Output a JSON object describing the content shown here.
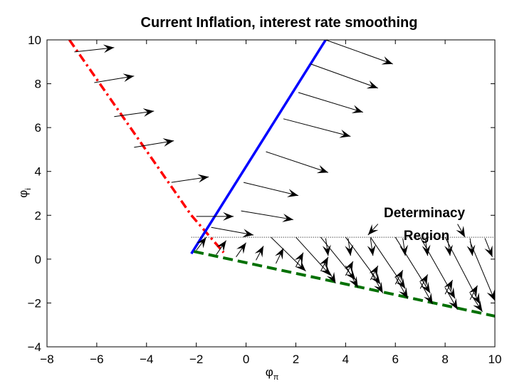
{
  "chart_data": {
    "type": "line",
    "title": "Current Inflation, interest rate smoothing",
    "xlabel": {
      "main": "φ",
      "sub": "π"
    },
    "ylabel": {
      "main": "φ",
      "sub": "i"
    },
    "xlim": [
      -8,
      10
    ],
    "ylim": [
      -4,
      10
    ],
    "xticks": [
      -8,
      -6,
      -4,
      -2,
      0,
      2,
      4,
      6,
      8,
      10
    ],
    "yticks": [
      -4,
      -2,
      0,
      2,
      4,
      6,
      8,
      10
    ],
    "grid": false,
    "series": [
      {
        "style": "dash-dot",
        "color": "#ff0000",
        "x": [
          -7.1,
          -2.2,
          -0.9
        ],
        "y": [
          10,
          2.0,
          0.3
        ]
      },
      {
        "style": "solid",
        "color": "#0000ff",
        "x": [
          -2.2,
          3.2
        ],
        "y": [
          0.25,
          10
        ]
      },
      {
        "style": "dashed",
        "color": "#007000",
        "x": [
          -2.1,
          10
        ],
        "y": [
          0.35,
          -2.6
        ]
      },
      {
        "style": "dotted",
        "color": "#000000",
        "x": [
          -2.2,
          10
        ],
        "y": [
          1,
          1
        ]
      }
    ],
    "arrows": [
      {
        "x1": -6.9,
        "y1": 9.45,
        "x2": -5.3,
        "y2": 9.65
      },
      {
        "x1": -6.1,
        "y1": 8.05,
        "x2": -4.5,
        "y2": 8.35
      },
      {
        "x1": -5.3,
        "y1": 6.5,
        "x2": -3.7,
        "y2": 6.75
      },
      {
        "x1": -4.5,
        "y1": 5.1,
        "x2": -2.9,
        "y2": 5.4
      },
      {
        "x1": -3.0,
        "y1": 3.5,
        "x2": -1.5,
        "y2": 3.75
      },
      {
        "x1": -2.0,
        "y1": 1.95,
        "x2": -0.5,
        "y2": 1.95
      },
      {
        "x1": 3.2,
        "y1": 10,
        "x2": 5.9,
        "y2": 8.9
      },
      {
        "x1": 2.6,
        "y1": 8.9,
        "x2": 5.3,
        "y2": 7.8
      },
      {
        "x1": 2.1,
        "y1": 7.6,
        "x2": 4.7,
        "y2": 6.7
      },
      {
        "x1": 1.5,
        "y1": 6.4,
        "x2": 4.2,
        "y2": 5.6
      },
      {
        "x1": 0.8,
        "y1": 4.9,
        "x2": 3.3,
        "y2": 3.95
      },
      {
        "x1": -0.1,
        "y1": 3.5,
        "x2": 2.1,
        "y2": 2.9
      },
      {
        "x1": -0.2,
        "y1": 2.2,
        "x2": 1.9,
        "y2": 1.8
      },
      {
        "x1": -1.4,
        "y1": 1.45,
        "x2": 0.3,
        "y2": 1.1
      },
      {
        "x1": -2.0,
        "y1": 0.4,
        "x2": -1.6,
        "y2": 1.0
      },
      {
        "x1": -1.2,
        "y1": 0.2,
        "x2": -0.8,
        "y2": 0.85
      },
      {
        "x1": -0.4,
        "y1": 0.1,
        "x2": 0.0,
        "y2": 0.75
      },
      {
        "x1": 0.4,
        "y1": -0.05,
        "x2": 0.7,
        "y2": 0.6
      },
      {
        "x1": 1.2,
        "y1": -0.2,
        "x2": 1.5,
        "y2": 0.5
      },
      {
        "x1": 2.0,
        "y1": -0.35,
        "x2": 2.3,
        "y2": 0.3
      },
      {
        "x1": 3.0,
        "y1": -0.55,
        "x2": 3.3,
        "y2": 0.1
      },
      {
        "x1": 4.0,
        "y1": -0.75,
        "x2": 4.3,
        "y2": -0.1
      },
      {
        "x1": 5.0,
        "y1": -0.95,
        "x2": 5.3,
        "y2": -0.3
      },
      {
        "x1": 6.0,
        "y1": -1.15,
        "x2": 6.3,
        "y2": -0.5
      },
      {
        "x1": 7.0,
        "y1": -1.35,
        "x2": 7.3,
        "y2": -0.7
      },
      {
        "x1": 8.0,
        "y1": -1.6,
        "x2": 8.3,
        "y2": -0.95
      },
      {
        "x1": 9.0,
        "y1": -1.85,
        "x2": 9.3,
        "y2": -1.2
      },
      {
        "x1": 3.1,
        "y1": -0.1,
        "x2": 3.6,
        "y2": -1.1
      },
      {
        "x1": 4.0,
        "y1": -0.3,
        "x2": 4.5,
        "y2": -1.3
      },
      {
        "x1": 5.0,
        "y1": -0.55,
        "x2": 5.5,
        "y2": -1.55
      },
      {
        "x1": 6.0,
        "y1": -0.8,
        "x2": 6.5,
        "y2": -1.8
      },
      {
        "x1": 7.0,
        "y1": -1.05,
        "x2": 7.5,
        "y2": -2.05
      },
      {
        "x1": 8.0,
        "y1": -1.3,
        "x2": 8.5,
        "y2": -2.3
      },
      {
        "x1": 9.0,
        "y1": -1.55,
        "x2": 9.5,
        "y2": -2.4
      },
      {
        "x1": 1.0,
        "y1": 1.0,
        "x2": 2.4,
        "y2": -0.55
      },
      {
        "x1": 2.0,
        "y1": 1.0,
        "x2": 3.4,
        "y2": -0.75
      },
      {
        "x1": 3.0,
        "y1": 1.0,
        "x2": 4.4,
        "y2": -0.95
      },
      {
        "x1": 4.0,
        "y1": 1.0,
        "x2": 5.4,
        "y2": -1.15
      },
      {
        "x1": 5.0,
        "y1": 1.0,
        "x2": 6.4,
        "y2": -1.35
      },
      {
        "x1": 6.0,
        "y1": 1.0,
        "x2": 7.4,
        "y2": -1.55
      },
      {
        "x1": 7.0,
        "y1": 1.0,
        "x2": 8.4,
        "y2": -1.8
      },
      {
        "x1": 8.0,
        "y1": 1.0,
        "x2": 9.4,
        "y2": -2.05
      },
      {
        "x1": 9.0,
        "y1": 0.8,
        "x2": 10.0,
        "y2": -1.9
      },
      {
        "x1": 3.2,
        "y1": 0.95,
        "x2": 3.3,
        "y2": 0.15
      },
      {
        "x1": 4.1,
        "y1": 0.95,
        "x2": 4.2,
        "y2": 0.15
      },
      {
        "x1": 5.0,
        "y1": 0.95,
        "x2": 5.1,
        "y2": 0.15
      },
      {
        "x1": 6.3,
        "y1": 0.95,
        "x2": 6.4,
        "y2": 0.15
      },
      {
        "x1": 7.2,
        "y1": 0.95,
        "x2": 7.3,
        "y2": 0.15
      },
      {
        "x1": 8.1,
        "y1": 0.95,
        "x2": 8.2,
        "y2": 0.15
      },
      {
        "x1": 9.0,
        "y1": 0.95,
        "x2": 9.1,
        "y2": 0.15
      },
      {
        "x1": 9.6,
        "y1": 0.95,
        "x2": 9.9,
        "y2": 0.1
      },
      {
        "x1": 5.3,
        "y1": 1.6,
        "x2": 4.9,
        "y2": 1.1
      },
      {
        "x1": 8.5,
        "y1": 1.6,
        "x2": 8.8,
        "y2": 1.0
      }
    ],
    "annotation": [
      "Determinacy",
      "Region"
    ]
  }
}
